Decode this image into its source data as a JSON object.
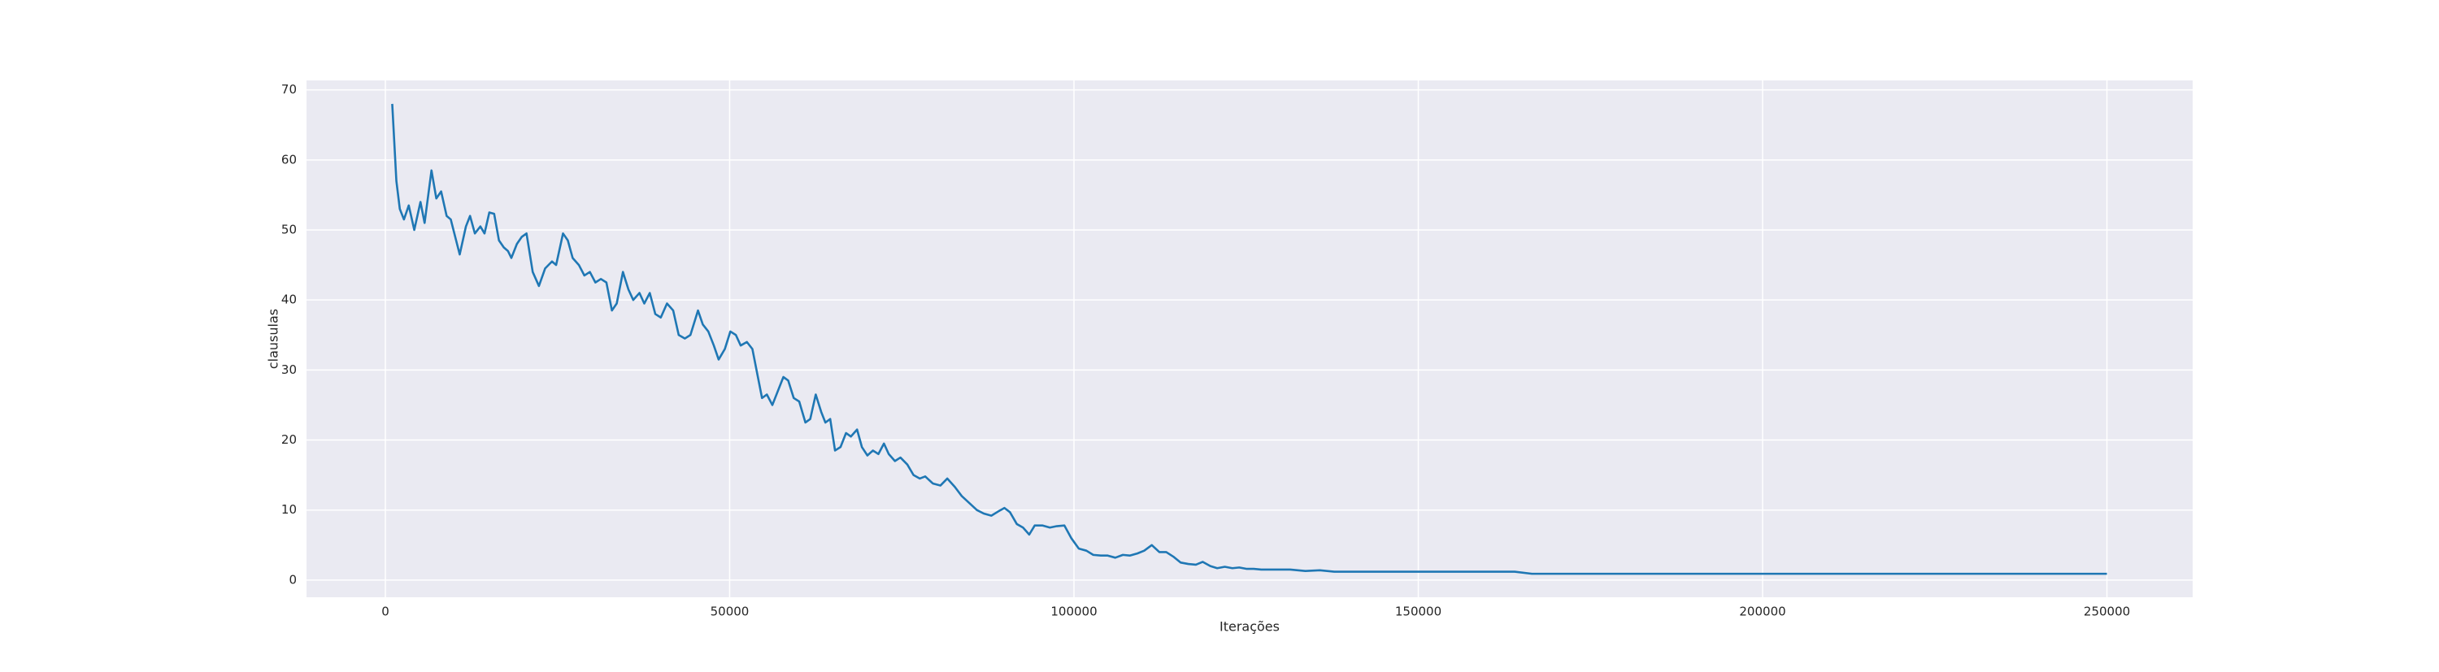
{
  "chart_data": {
    "type": "line",
    "x_label": "Iterações",
    "y_label": "clausulas",
    "x": [
      1000,
      1600,
      2100,
      2700,
      3400,
      4200,
      5100,
      5700,
      6700,
      7400,
      8100,
      8900,
      9500,
      10800,
      11700,
      12300,
      13000,
      13800,
      14400,
      15100,
      15800,
      16500,
      17200,
      17800,
      18300,
      19100,
      19800,
      20500,
      21400,
      22300,
      23200,
      24200,
      24800,
      25800,
      26500,
      27200,
      28100,
      28900,
      29700,
      30500,
      31300,
      32100,
      32900,
      33600,
      34500,
      35300,
      36000,
      36900,
      37600,
      38400,
      39200,
      40000,
      40900,
      41800,
      42600,
      43500,
      44300,
      45400,
      46100,
      46900,
      47700,
      48400,
      49300,
      50100,
      50900,
      51600,
      52500,
      53300,
      54100,
      54700,
      55400,
      56200,
      57000,
      57800,
      58500,
      59300,
      60100,
      61000,
      61700,
      62500,
      63300,
      63900,
      64600,
      65300,
      66100,
      66900,
      67600,
      68500,
      69200,
      70000,
      70800,
      71600,
      72400,
      73100,
      74000,
      74800,
      75800,
      76700,
      77600,
      78400,
      79500,
      80600,
      81600,
      82700,
      83700,
      84800,
      85900,
      86900,
      88000,
      89000,
      89900,
      90700,
      91700,
      92600,
      93500,
      94300,
      95400,
      96500,
      97500,
      98600,
      99600,
      100700,
      101800,
      102800,
      103900,
      104900,
      106000,
      107100,
      108100,
      109200,
      110200,
      111300,
      112400,
      113400,
      114500,
      115500,
      116600,
      117700,
      118700,
      119800,
      120800,
      121900,
      123000,
      124000,
      125100,
      126100,
      127200,
      129300,
      131400,
      133600,
      135700,
      137800,
      140000,
      150000,
      160000,
      164000,
      166500,
      200000,
      250000
    ],
    "series": [
      {
        "name": "clausulas",
        "color": "#1f77b4",
        "values": [
          68,
          57,
          53,
          51.5,
          53.5,
          50,
          54,
          51,
          58.5,
          54.5,
          55.5,
          52,
          51.5,
          46.5,
          50.5,
          52,
          49.5,
          50.5,
          49.5,
          52.5,
          52.3,
          48.5,
          47.5,
          47,
          46,
          48,
          49,
          49.5,
          44,
          42,
          44.5,
          45.5,
          45,
          49.5,
          48.5,
          46,
          45,
          43.5,
          44,
          42.5,
          43,
          42.5,
          38.5,
          39.5,
          44,
          41.5,
          40,
          41,
          39.5,
          41,
          38,
          37.5,
          39.5,
          38.5,
          35,
          34.5,
          35,
          38.5,
          36.5,
          35.5,
          33.5,
          31.5,
          33,
          35.5,
          35,
          33.5,
          34,
          33,
          29,
          26,
          26.5,
          25,
          27,
          29,
          28.5,
          26,
          25.5,
          22.5,
          23,
          26.5,
          24,
          22.5,
          23,
          18.5,
          19,
          21,
          20.5,
          21.5,
          19,
          17.8,
          18.5,
          18,
          19.5,
          18,
          17,
          17.5,
          16.5,
          15,
          14.5,
          14.8,
          13.8,
          13.5,
          14.5,
          13.3,
          12,
          11,
          10,
          9.5,
          9.2,
          9.8,
          10.3,
          9.7,
          8,
          7.5,
          6.5,
          7.8,
          7.8,
          7.5,
          7.7,
          7.8,
          6,
          4.5,
          4.2,
          3.6,
          3.5,
          3.5,
          3.2,
          3.6,
          3.5,
          3.8,
          4.2,
          5,
          4,
          4,
          3.3,
          2.5,
          2.3,
          2.2,
          2.6,
          2,
          1.7,
          1.9,
          1.7,
          1.8,
          1.6,
          1.6,
          1.5,
          1.5,
          1.5,
          1.3,
          1.4,
          1.2,
          1.2,
          1.2,
          1.2,
          1.2,
          0.9,
          0.9,
          0.9
        ]
      }
    ],
    "xlim": [
      -11450,
      262450
    ],
    "ylim": [
      -2.45,
      71.35
    ],
    "xticks": [
      0,
      50000,
      100000,
      150000,
      200000,
      250000
    ],
    "yticks": [
      0,
      10,
      20,
      30,
      40,
      50,
      60,
      70
    ],
    "grid": true
  }
}
